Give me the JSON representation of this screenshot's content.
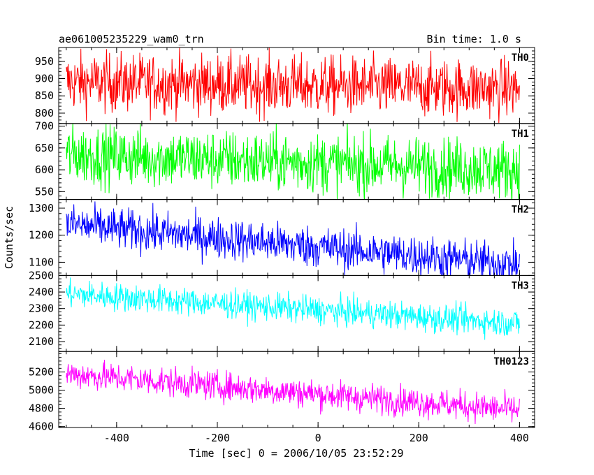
{
  "chart_data": {
    "type": "line",
    "title_left": "ae061005235229_wam0_trn",
    "title_right": "Bin time: 1.0 s",
    "xlabel": "Time [sec] 0 = 2006/10/05 23:52:29",
    "ylabel": "Counts/sec",
    "xlim": [
      -515,
      430
    ],
    "x_ticks": [
      -400,
      -200,
      0,
      200,
      400
    ],
    "x_data_range": [
      -500,
      400
    ],
    "panels": [
      {
        "name": "TH0",
        "color": "#ff0000",
        "ylim": [
          770,
          990
        ],
        "y_ticks": [
          800,
          850,
          900,
          950
        ],
        "trend": [
          890,
          870
        ],
        "noise": 50
      },
      {
        "name": "TH1",
        "color": "#00ff00",
        "ylim": [
          532,
          706
        ],
        "y_ticks": [
          550,
          600,
          650,
          700
        ],
        "trend": [
          635,
          600
        ],
        "noise": 40
      },
      {
        "name": "TH2",
        "color": "#0000ff",
        "ylim": [
          1051,
          1332
        ],
        "y_ticks": [
          1100,
          1200,
          1300
        ],
        "trend": [
          1240,
          1090
        ],
        "noise": 45
      },
      {
        "name": "TH3",
        "color": "#00ffff",
        "ylim": [
          2040,
          2500
        ],
        "y_ticks": [
          2100,
          2200,
          2300,
          2400,
          2500
        ],
        "trend": [
          2390,
          2210
        ],
        "noise": 50
      },
      {
        "name": "TH0123",
        "color": "#ff00ff",
        "ylim": [
          4590,
          5425
        ],
        "y_ticks": [
          4600,
          4800,
          5000,
          5200
        ],
        "trend": [
          5180,
          4780
        ],
        "noise": 95
      }
    ]
  }
}
